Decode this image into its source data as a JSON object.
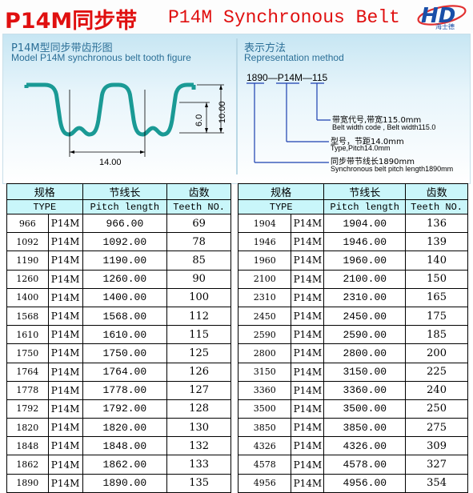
{
  "header": {
    "title_cn": "P14M同步带",
    "title_en": "P14M Synchronous Belt",
    "logo_letters": "HD",
    "logo_text": "海士德",
    "colors": {
      "title": "#e01010",
      "logo": "#1a4fa8",
      "table_header": "#c9f6fa",
      "tooth": "#1a9a95"
    }
  },
  "left_section": {
    "title_cn": "P14M型同步带齿形图",
    "title_en": "Model P14M synchronous belt tooth figure",
    "dim_pitch": "14.00",
    "dim_height1": "6.0",
    "dim_height2": "10.00"
  },
  "right_section": {
    "title_cn": "表示方法",
    "title_en": "Representation method",
    "code": "1890—P14M—115",
    "width_cn": "带宽代号,带宽115.0mm",
    "width_en": "Belt width code , Belt width115.0",
    "type_cn": "型号，节距14.0mm",
    "type_en": "Type,Pitch14.0mm",
    "length_cn": "同步带节线长1890mm",
    "length_en": "Synchronous belt pitch length1890mm"
  },
  "table": {
    "headers_cn": [
      "规格",
      "节线长",
      "齿数"
    ],
    "headers_en": [
      "TYPE",
      "Pitch length",
      "Teeth NO."
    ],
    "left_rows": [
      [
        "966",
        "P14M",
        "966.00",
        "69"
      ],
      [
        "1092",
        "P14M",
        "1092.00",
        "78"
      ],
      [
        "1190",
        "P14M",
        "1190.00",
        "85"
      ],
      [
        "1260",
        "P14M",
        "1260.00",
        "90"
      ],
      [
        "1400",
        "P14M",
        "1400.00",
        "100"
      ],
      [
        "1568",
        "P14M",
        "1568.00",
        "112"
      ],
      [
        "1610",
        "P14M",
        "1610.00",
        "115"
      ],
      [
        "1750",
        "P14M",
        "1750.00",
        "125"
      ],
      [
        "1764",
        "P14M",
        "1764.00",
        "126"
      ],
      [
        "1778",
        "P14M",
        "1778.00",
        "127"
      ],
      [
        "1792",
        "P14M",
        "1792.00",
        "128"
      ],
      [
        "1820",
        "P14M",
        "1820.00",
        "130"
      ],
      [
        "1848",
        "P14M",
        "1848.00",
        "132"
      ],
      [
        "1862",
        "P14M",
        "1862.00",
        "133"
      ],
      [
        "1890",
        "P14M",
        "1890.00",
        "135"
      ]
    ],
    "right_rows": [
      [
        "1904",
        "P14M",
        "1904.00",
        "136"
      ],
      [
        "1946",
        "P14M",
        "1946.00",
        "139"
      ],
      [
        "1960",
        "P14M",
        "1960.00",
        "140"
      ],
      [
        "2100",
        "P14M",
        "2100.00",
        "150"
      ],
      [
        "2310",
        "P14M",
        "2310.00",
        "165"
      ],
      [
        "2450",
        "P14M",
        "2450.00",
        "175"
      ],
      [
        "2590",
        "P14M",
        "2590.00",
        "185"
      ],
      [
        "2800",
        "P14M",
        "2800.00",
        "200"
      ],
      [
        "3150",
        "P14M",
        "3150.00",
        "225"
      ],
      [
        "3360",
        "P14M",
        "3360.00",
        "240"
      ],
      [
        "3500",
        "P14M",
        "3500.00",
        "250"
      ],
      [
        "3850",
        "P14M",
        "3850.00",
        "275"
      ],
      [
        "4326",
        "P14M",
        "4326.00",
        "309"
      ],
      [
        "4578",
        "P14M",
        "4578.00",
        "327"
      ],
      [
        "4956",
        "P14M",
        "4956.00",
        "354"
      ]
    ]
  }
}
